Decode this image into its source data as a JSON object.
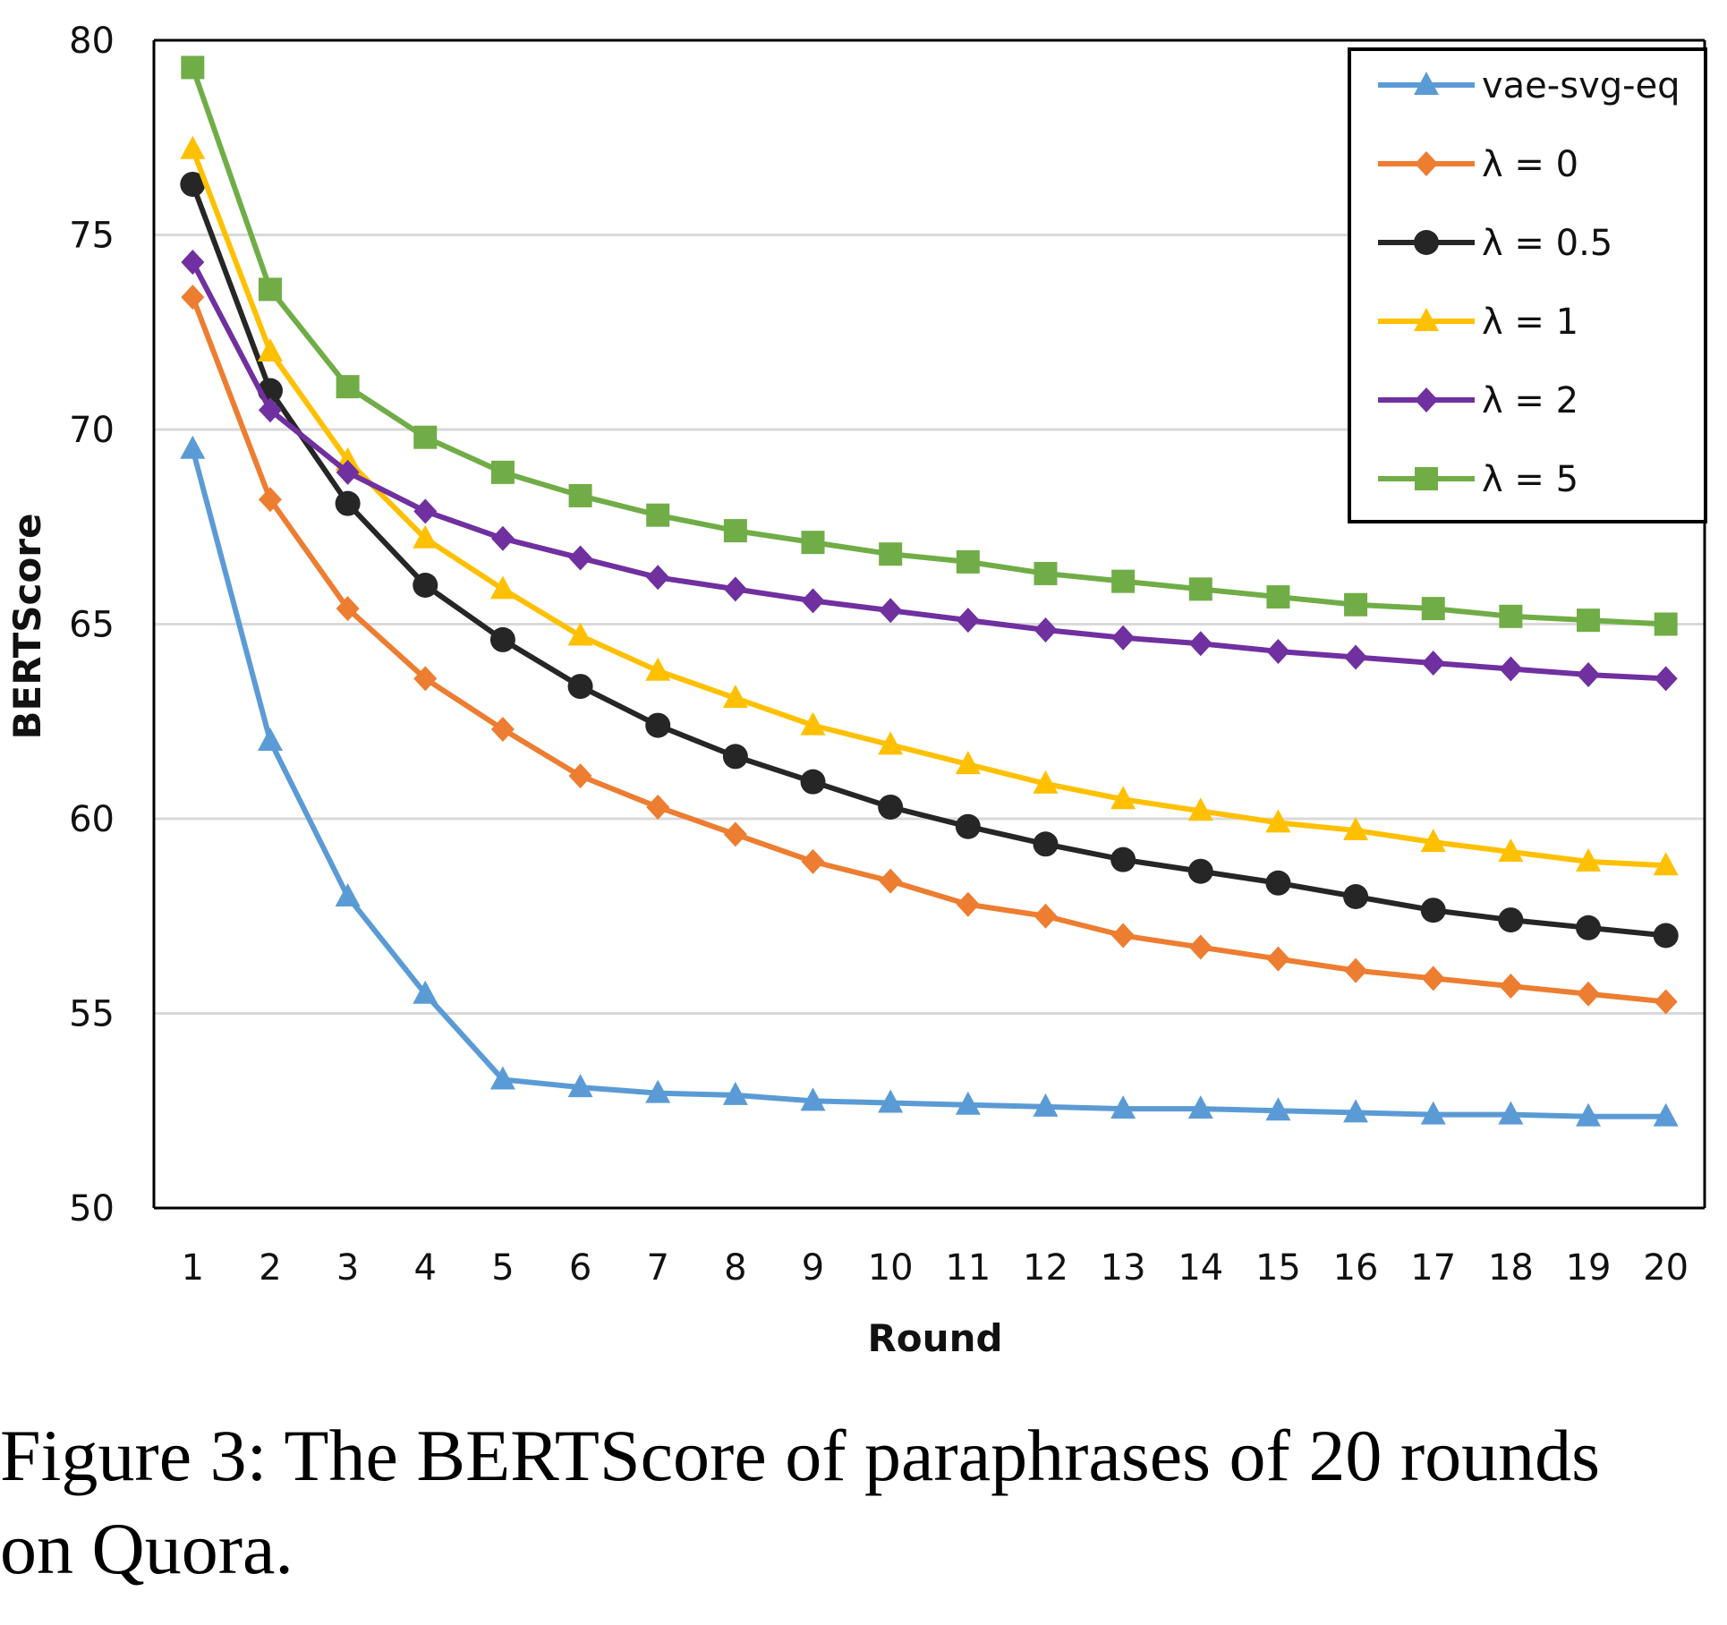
{
  "chart_data": {
    "type": "line",
    "x": [
      1,
      2,
      3,
      4,
      5,
      6,
      7,
      8,
      9,
      10,
      11,
      12,
      13,
      14,
      15,
      16,
      17,
      18,
      19,
      20
    ],
    "xlabel": "Round",
    "ylabel": "BERTScore",
    "ylim": [
      50,
      80
    ],
    "yticks": [
      50,
      55,
      60,
      65,
      70,
      75,
      80
    ],
    "grid": true,
    "legend": "top-right",
    "series": [
      {
        "name": "vae-svg-eq",
        "color": "#5B9BD5",
        "marker": "triangle",
        "values": [
          69.5,
          62.0,
          58.0,
          55.5,
          53.3,
          53.1,
          52.95,
          52.9,
          52.75,
          52.7,
          52.65,
          52.6,
          52.55,
          52.55,
          52.5,
          52.45,
          52.4,
          52.4,
          52.35,
          52.35
        ]
      },
      {
        "name": "λ = 0",
        "color": "#ED7D31",
        "marker": "diamond",
        "values": [
          73.4,
          68.2,
          65.4,
          63.6,
          62.3,
          61.1,
          60.3,
          59.6,
          58.9,
          58.4,
          57.8,
          57.5,
          57.0,
          56.7,
          56.4,
          56.1,
          55.9,
          55.7,
          55.5,
          55.3
        ]
      },
      {
        "name": "λ = 0.5",
        "color": "#262626",
        "marker": "circle",
        "values": [
          76.3,
          71.0,
          68.1,
          66.0,
          64.6,
          63.4,
          62.4,
          61.6,
          60.95,
          60.3,
          59.8,
          59.35,
          58.95,
          58.65,
          58.35,
          58.0,
          57.65,
          57.4,
          57.2,
          57.0
        ]
      },
      {
        "name": "λ = 1",
        "color": "#FFC000",
        "marker": "triangle",
        "values": [
          77.2,
          72.0,
          69.2,
          67.2,
          65.9,
          64.7,
          63.8,
          63.1,
          62.4,
          61.9,
          61.4,
          60.9,
          60.5,
          60.2,
          59.9,
          59.7,
          59.4,
          59.15,
          58.9,
          58.8
        ]
      },
      {
        "name": "λ = 2",
        "color": "#7030A0",
        "marker": "diamond",
        "values": [
          74.3,
          70.5,
          68.9,
          67.9,
          67.2,
          66.7,
          66.2,
          65.9,
          65.6,
          65.35,
          65.1,
          64.85,
          64.65,
          64.5,
          64.3,
          64.15,
          64.0,
          63.85,
          63.7,
          63.6
        ]
      },
      {
        "name": "λ = 5",
        "color": "#70AD47",
        "marker": "square",
        "values": [
          79.3,
          73.6,
          71.1,
          69.8,
          68.9,
          68.3,
          67.8,
          67.4,
          67.1,
          66.8,
          66.6,
          66.3,
          66.1,
          65.9,
          65.7,
          65.5,
          65.4,
          65.2,
          65.1,
          65.0
        ]
      }
    ]
  },
  "caption": {
    "line1": "Figure 3: The BERTScore of paraphrases of 20 rounds",
    "line2": "on Quora."
  }
}
